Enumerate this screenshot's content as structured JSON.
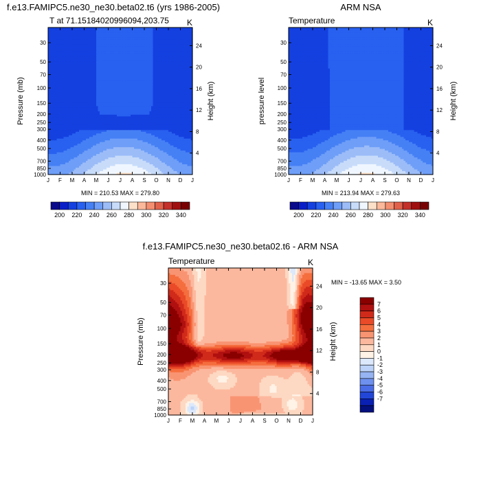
{
  "chart_data": [
    {
      "type": "heatmap",
      "panel": "model",
      "title": "f.e13.FAMIPC5.ne30_ne30.beta02.t6 (yrs 1986-2005)",
      "subtitle_left": "T at 71.15184020996094,203.75",
      "subtitle_right": "K",
      "xlabel": "",
      "ylabel": "Pressure (mb)",
      "ylabel_right": "Height (km)",
      "x_ticks": [
        "J",
        "F",
        "M",
        "A",
        "M",
        "J",
        "J",
        "A",
        "S",
        "O",
        "N",
        "D",
        "J"
      ],
      "y_ticks": [
        30,
        50,
        70,
        100,
        150,
        200,
        250,
        300,
        400,
        500,
        700,
        850,
        1000
      ],
      "y_scale": "log",
      "ylim": [
        1000,
        20
      ],
      "height_ticks": [
        4,
        8,
        12,
        16,
        20,
        24
      ],
      "stats_text": "MIN = 210.53 MAX = 279.80",
      "colorbar_labels": [
        "200",
        "220",
        "240",
        "260",
        "280",
        "300",
        "320",
        "340"
      ],
      "colorbar_colors": [
        "#0a0a8c",
        "#0a1ec8",
        "#1440e0",
        "#2860f0",
        "#4680f5",
        "#6e9ef7",
        "#9cbcf8",
        "#c8dcfa",
        "#f0f6ff",
        "#fde0c8",
        "#fbb89a",
        "#f38e70",
        "#e0604a",
        "#c4302a",
        "#a01010",
        "#780000"
      ],
      "z_levels": [
        190,
        200,
        210,
        220,
        230,
        240,
        250,
        260,
        270,
        280,
        290,
        300,
        310,
        320,
        330,
        340,
        350
      ],
      "profile_kind": "model"
    },
    {
      "type": "heatmap",
      "panel": "obs",
      "title": "ARM NSA",
      "subtitle_left": "Temperature",
      "subtitle_right": "K",
      "xlabel": "",
      "ylabel": "pressure level",
      "ylabel_right": "Height (km)",
      "x_ticks": [
        "J",
        "F",
        "M",
        "A",
        "M",
        "J",
        "J",
        "A",
        "S",
        "O",
        "N",
        "D",
        "J"
      ],
      "y_ticks": [
        30,
        50,
        70,
        100,
        150,
        200,
        250,
        300,
        400,
        500,
        700,
        850,
        1000
      ],
      "y_scale": "log",
      "ylim": [
        1000,
        20
      ],
      "height_ticks": [
        4,
        8,
        12,
        16,
        20,
        24
      ],
      "stats_text": "MIN = 213.94 MAX = 279.63",
      "colorbar_labels": [
        "200",
        "220",
        "240",
        "260",
        "280",
        "300",
        "320",
        "340"
      ],
      "colorbar_colors": [
        "#0a0a8c",
        "#0a1ec8",
        "#1440e0",
        "#2860f0",
        "#4680f5",
        "#6e9ef7",
        "#9cbcf8",
        "#c8dcfa",
        "#f0f6ff",
        "#fde0c8",
        "#fbb89a",
        "#f38e70",
        "#e0604a",
        "#c4302a",
        "#a01010",
        "#780000"
      ],
      "z_levels": [
        190,
        200,
        210,
        220,
        230,
        240,
        250,
        260,
        270,
        280,
        290,
        300,
        310,
        320,
        330,
        340,
        350
      ],
      "profile_kind": "obs"
    },
    {
      "type": "heatmap",
      "panel": "diff",
      "title": "f.e13.FAMIPC5.ne30_ne30.beta02.t6 - ARM NSA",
      "subtitle_left": "Temperature",
      "subtitle_right": "K",
      "xlabel": "",
      "ylabel": "Pressure (mb)",
      "ylabel_right": "Height (km)",
      "x_ticks": [
        "J",
        "F",
        "M",
        "A",
        "M",
        "J",
        "J",
        "A",
        "S",
        "O",
        "N",
        "D",
        "J"
      ],
      "y_ticks": [
        30,
        50,
        70,
        100,
        150,
        200,
        250,
        300,
        400,
        500,
        700,
        850,
        1000
      ],
      "y_scale": "log",
      "ylim": [
        1000,
        20
      ],
      "height_ticks": [
        4,
        8,
        12,
        16,
        20,
        24
      ],
      "stats_text": "MIN = -13.65 MAX =   3.50",
      "colorbar_labels": [
        "7",
        "6",
        "5",
        "4",
        "3",
        "2",
        "1",
        "0",
        "-1",
        "-2",
        "-3",
        "-4",
        "-5",
        "-6",
        "-7"
      ],
      "colorbar_colors": [
        "#8a0000",
        "#b01010",
        "#d02a1a",
        "#ea4a28",
        "#f56e3e",
        "#f99472",
        "#fcb89e",
        "#fdd8c2",
        "#fff2e6",
        "#dce8fb",
        "#bcd2f8",
        "#96b4f3",
        "#6e90ee",
        "#4a6ce6",
        "#2246d8",
        "#0a20b4",
        "#04107e"
      ],
      "z_levels": [
        -8,
        -7,
        -6,
        -5,
        -4,
        -3,
        -2,
        -1,
        0,
        1,
        2,
        3,
        4,
        5,
        6,
        7,
        8
      ],
      "profile_kind": "diff"
    }
  ]
}
